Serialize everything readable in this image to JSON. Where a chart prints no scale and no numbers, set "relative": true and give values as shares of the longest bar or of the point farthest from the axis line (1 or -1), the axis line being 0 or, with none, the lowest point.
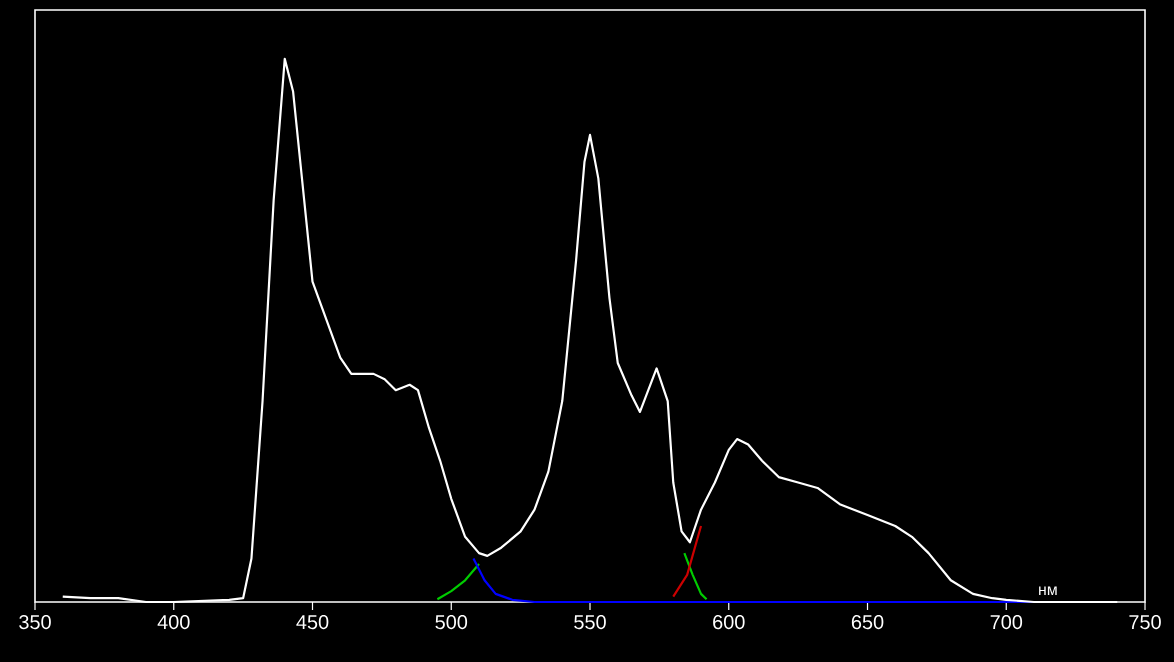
{
  "chart_data": {
    "type": "line",
    "relative": true,
    "xlabel": "нм",
    "xlim": [
      350,
      750
    ],
    "xticks": [
      350,
      400,
      450,
      500,
      550,
      600,
      650,
      700,
      750
    ],
    "marker": "none",
    "line_style": "solid",
    "tick_labels": "x",
    "series": [
      {
        "color": "#00cc00",
        "x": [
          495,
          500,
          505,
          510,
          550,
          584,
          587,
          590,
          592
        ],
        "values": [
          0.005,
          0.02,
          0.04,
          0.07,
          null,
          0.09,
          0.05,
          0.015,
          0.005
        ]
      },
      {
        "color": "#cc0000",
        "x": [
          580,
          585,
          590
        ],
        "values": [
          0.01,
          0.05,
          0.14
        ]
      },
      {
        "color": "#0000ff",
        "x": [
          508,
          512,
          516,
          522,
          530,
          600,
          700,
          710
        ],
        "values": [
          0.08,
          0.04,
          0.015,
          0.004,
          0,
          0,
          0,
          0
        ]
      },
      {
        "color": "#ffffff",
        "x": [
          360,
          370,
          380,
          390,
          400,
          420,
          425,
          428,
          432,
          436,
          440,
          443,
          447,
          450,
          455,
          460,
          464,
          468,
          472,
          476,
          480,
          485,
          488,
          492,
          496,
          500,
          505,
          510,
          513,
          518,
          525,
          530,
          535,
          540,
          545,
          548,
          550,
          553,
          557,
          560,
          565,
          568,
          571,
          574,
          578,
          580,
          583,
          586,
          590,
          595,
          600,
          603,
          607,
          612,
          618,
          625,
          632,
          640,
          650,
          660,
          666,
          672,
          680,
          688,
          695,
          700,
          710,
          740
        ],
        "values": [
          0.01,
          0.007,
          0.007,
          0,
          0,
          0.004,
          0.007,
          0.08,
          0.37,
          0.74,
          1.0,
          0.94,
          0.74,
          0.59,
          0.52,
          0.45,
          0.42,
          0.42,
          0.42,
          0.41,
          0.39,
          0.4,
          0.39,
          0.32,
          0.26,
          0.19,
          0.12,
          0.09,
          0.085,
          0.1,
          0.13,
          0.17,
          0.24,
          0.37,
          0.63,
          0.81,
          0.86,
          0.78,
          0.56,
          0.44,
          0.38,
          0.35,
          0.39,
          0.43,
          0.37,
          0.22,
          0.13,
          0.11,
          0.17,
          0.22,
          0.28,
          0.3,
          0.29,
          0.26,
          0.23,
          0.22,
          0.21,
          0.18,
          0.16,
          0.14,
          0.12,
          0.09,
          0.04,
          0.015,
          0.007,
          0.004,
          0,
          0
        ]
      }
    ]
  }
}
